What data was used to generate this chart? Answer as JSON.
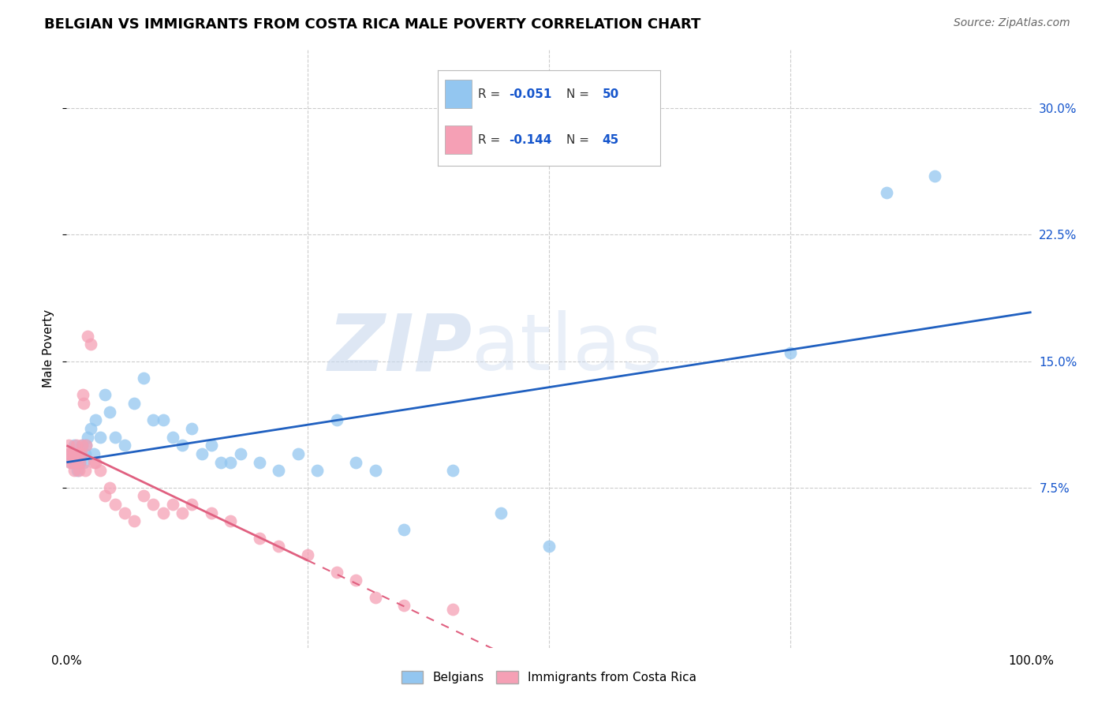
{
  "title": "BELGIAN VS IMMIGRANTS FROM COSTA RICA MALE POVERTY CORRELATION CHART",
  "source": "Source: ZipAtlas.com",
  "ylabel": "Male Poverty",
  "xlim": [
    0.0,
    1.0
  ],
  "ylim": [
    -0.02,
    0.335
  ],
  "yticks": [
    0.075,
    0.15,
    0.225,
    0.3
  ],
  "ytick_labels": [
    "7.5%",
    "15.0%",
    "22.5%",
    "30.0%"
  ],
  "xticks": [
    0.0,
    0.25,
    0.5,
    0.75,
    1.0
  ],
  "xtick_labels": [
    "0.0%",
    "",
    "",
    "",
    "100.0%"
  ],
  "watermark_zip": "ZIP",
  "watermark_atlas": "atlas",
  "belgians_R": "-0.051",
  "belgians_N": "50",
  "immigrants_R": "-0.144",
  "immigrants_N": "45",
  "blue_color": "#93C6F0",
  "pink_color": "#F5A0B5",
  "blue_line_color": "#2060C0",
  "pink_line_color": "#E06080",
  "legend_text_color": "#1555CC",
  "belgians_x": [
    0.003,
    0.005,
    0.007,
    0.008,
    0.009,
    0.01,
    0.011,
    0.012,
    0.013,
    0.014,
    0.015,
    0.016,
    0.018,
    0.019,
    0.02,
    0.022,
    0.025,
    0.028,
    0.03,
    0.035,
    0.04,
    0.045,
    0.05,
    0.06,
    0.07,
    0.08,
    0.09,
    0.1,
    0.11,
    0.12,
    0.13,
    0.14,
    0.15,
    0.16,
    0.17,
    0.18,
    0.2,
    0.22,
    0.24,
    0.26,
    0.28,
    0.3,
    0.32,
    0.35,
    0.4,
    0.45,
    0.5,
    0.75,
    0.85,
    0.9
  ],
  "belgians_y": [
    0.095,
    0.09,
    0.095,
    0.1,
    0.09,
    0.095,
    0.085,
    0.09,
    0.095,
    0.09,
    0.095,
    0.1,
    0.09,
    0.095,
    0.1,
    0.105,
    0.11,
    0.095,
    0.115,
    0.105,
    0.13,
    0.12,
    0.105,
    0.1,
    0.125,
    0.14,
    0.115,
    0.115,
    0.105,
    0.1,
    0.11,
    0.095,
    0.1,
    0.09,
    0.09,
    0.095,
    0.09,
    0.085,
    0.095,
    0.085,
    0.115,
    0.09,
    0.085,
    0.05,
    0.085,
    0.06,
    0.04,
    0.155,
    0.25,
    0.26
  ],
  "immigrants_x": [
    0.002,
    0.003,
    0.004,
    0.005,
    0.006,
    0.007,
    0.008,
    0.009,
    0.01,
    0.011,
    0.012,
    0.013,
    0.014,
    0.015,
    0.016,
    0.017,
    0.018,
    0.019,
    0.02,
    0.022,
    0.025,
    0.028,
    0.03,
    0.035,
    0.04,
    0.045,
    0.05,
    0.06,
    0.07,
    0.08,
    0.09,
    0.1,
    0.11,
    0.12,
    0.13,
    0.15,
    0.17,
    0.2,
    0.22,
    0.25,
    0.28,
    0.3,
    0.32,
    0.35,
    0.4
  ],
  "immigrants_y": [
    0.1,
    0.095,
    0.09,
    0.095,
    0.09,
    0.095,
    0.085,
    0.095,
    0.1,
    0.09,
    0.095,
    0.085,
    0.09,
    0.095,
    0.1,
    0.13,
    0.125,
    0.085,
    0.1,
    0.165,
    0.16,
    0.09,
    0.09,
    0.085,
    0.07,
    0.075,
    0.065,
    0.06,
    0.055,
    0.07,
    0.065,
    0.06,
    0.065,
    0.06,
    0.065,
    0.06,
    0.055,
    0.045,
    0.04,
    0.035,
    0.025,
    0.02,
    0.01,
    0.005,
    0.003
  ],
  "title_fontsize": 13,
  "axis_label_fontsize": 11,
  "tick_fontsize": 11,
  "source_fontsize": 10,
  "legend_fontsize": 11
}
